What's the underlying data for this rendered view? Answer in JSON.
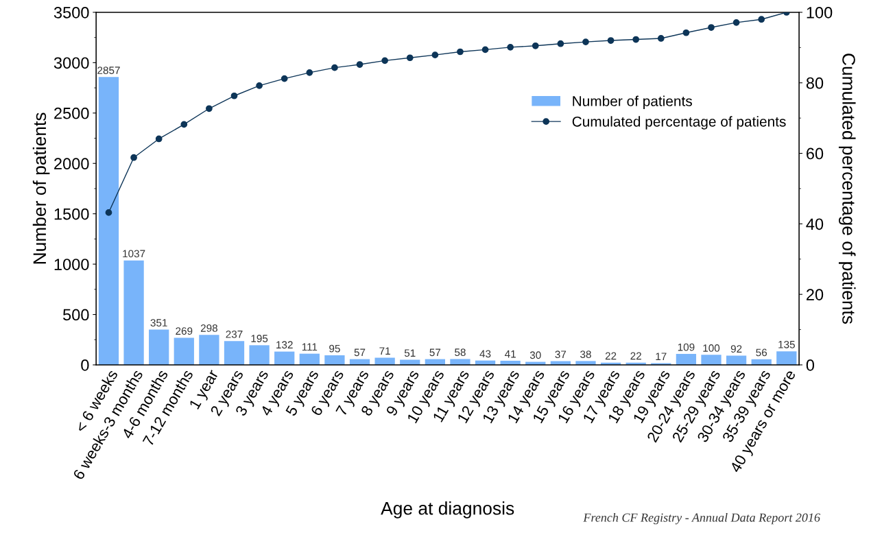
{
  "chart_data": {
    "type": "bar",
    "xlabel": "Age at diagnosis",
    "ylabel": "Number of patients",
    "y2label": "Cumulated percentage of patients",
    "categories": [
      "< 6 weeks",
      "6 weeks-3 months",
      "4-6 months",
      "7-12 months",
      "1 year",
      "2 years",
      "3 years",
      "4 years",
      "5 years",
      "6 years",
      "7 years",
      "8 years",
      "9 years",
      "10 years",
      "11 years",
      "12 years",
      "13 years",
      "14 years",
      "15 years",
      "16 years",
      "17 years",
      "18 years",
      "19 years",
      "20-24 years",
      "25-29 years",
      "30-34 years",
      "35-39 years",
      "40 years or more"
    ],
    "series": [
      {
        "name": "Number of patients",
        "color": "#78b4fa",
        "values": [
          2857,
          1037,
          351,
          269,
          298,
          237,
          195,
          132,
          111,
          95,
          57,
          71,
          51,
          57,
          58,
          43,
          41,
          30,
          37,
          38,
          22,
          22,
          17,
          109,
          100,
          92,
          56,
          135
        ],
        "value_labels": [
          "2857",
          "1037",
          "351",
          "269",
          "298",
          "237",
          "195",
          "132",
          "111",
          "95",
          "57",
          "71",
          "51",
          "57",
          "58",
          "43",
          "41",
          "30",
          "37",
          "38",
          "22",
          "22",
          "17",
          "109",
          "100",
          "92",
          "56",
          "135"
        ]
      },
      {
        "name": "Cumulated percentage of patients",
        "type": "line",
        "axis": "y2",
        "color": "#0d3558",
        "marker": "circle",
        "values": [
          43.2,
          58.8,
          64.1,
          68.2,
          72.7,
          76.3,
          79.2,
          81.2,
          82.9,
          84.3,
          85.2,
          86.3,
          87.1,
          87.9,
          88.8,
          89.4,
          90.1,
          90.5,
          91.1,
          91.6,
          92.0,
          92.3,
          92.6,
          94.2,
          95.7,
          97.1,
          98.0,
          100
        ]
      }
    ],
    "ylim": [
      0,
      3500
    ],
    "yticks": [
      0,
      500,
      1000,
      1500,
      2000,
      2500,
      3000,
      3500
    ],
    "y2lim": [
      0,
      100
    ],
    "y2ticks": [
      0,
      20,
      40,
      60,
      80,
      100
    ],
    "grid": false,
    "legend": "top right",
    "annotations": [
      "French CF Registry - Annual Data Report 2016"
    ]
  }
}
